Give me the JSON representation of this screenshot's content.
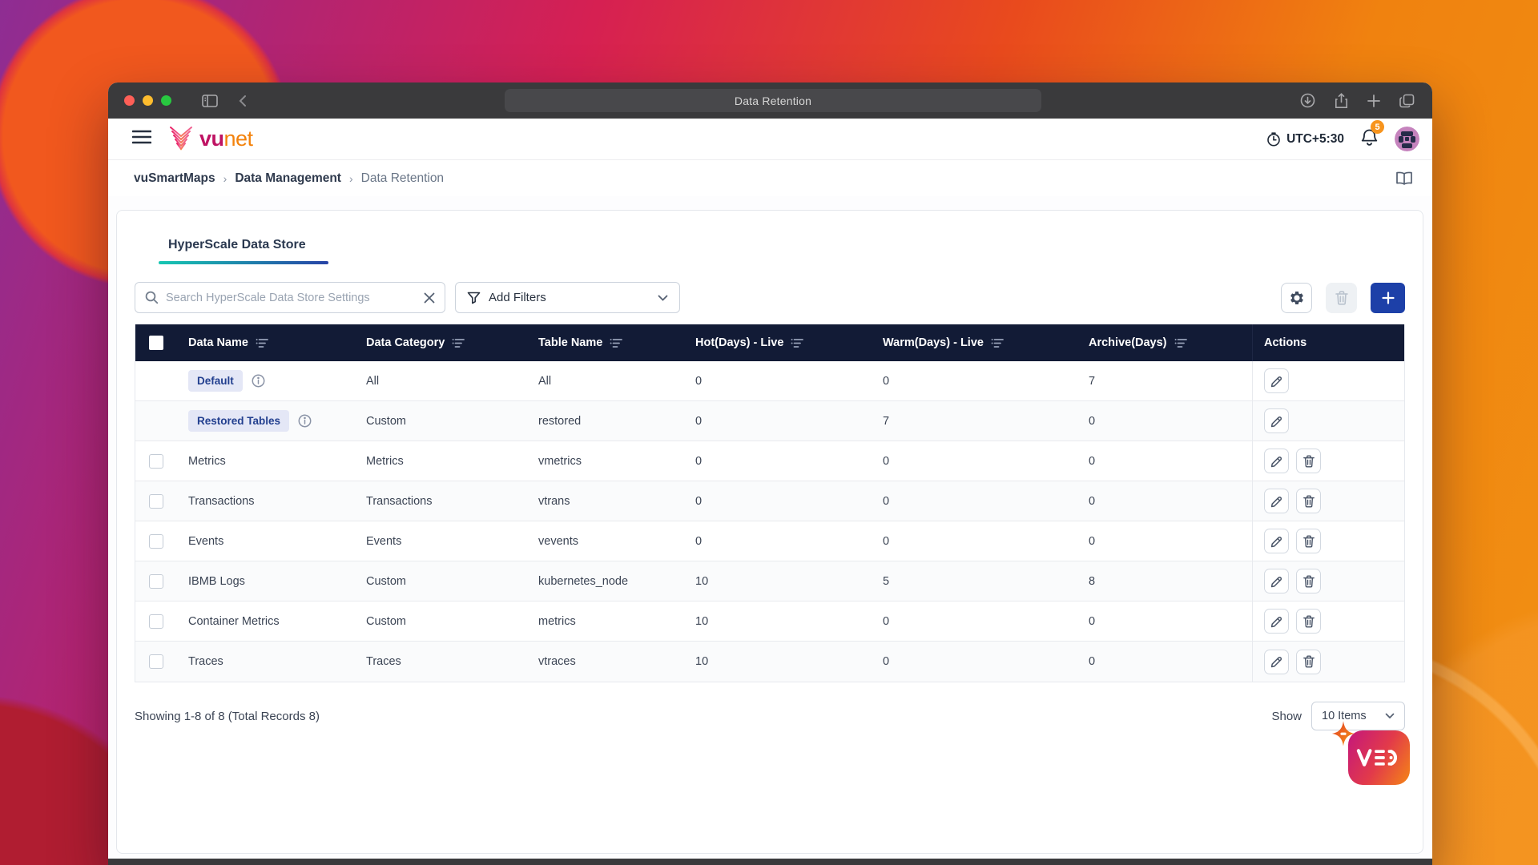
{
  "browser": {
    "title": "Data Retention",
    "traffic_lights": [
      "close",
      "minimize",
      "zoom"
    ],
    "left_icons": [
      "sidebar-icon",
      "back-chevron-icon"
    ],
    "right_icons": [
      "downloads-icon",
      "share-icon",
      "new-tab-icon",
      "tab-overview-icon"
    ]
  },
  "header": {
    "logo_vu": "vu",
    "logo_net": "net",
    "timezone": "UTC+5:30",
    "notification_count": "5"
  },
  "breadcrumb": {
    "items": [
      "vuSmartMaps",
      "Data Management",
      "Data Retention"
    ],
    "separator": "›"
  },
  "tabs": {
    "active_label": "HyperScale Data Store"
  },
  "toolbar": {
    "search_placeholder": "Search HyperScale Data Store Settings",
    "add_filters_label": "Add Filters"
  },
  "table": {
    "columns": [
      {
        "label": "",
        "type": "checkbox"
      },
      {
        "label": "Data Name",
        "filter": true
      },
      {
        "label": "Data Category",
        "filter": true
      },
      {
        "label": "Table Name",
        "filter": true
      },
      {
        "label": "Hot(Days) - Live",
        "filter": true
      },
      {
        "label": "Warm(Days) - Live",
        "filter": true
      },
      {
        "label": "Archive(Days)",
        "filter": true
      },
      {
        "label": "Actions",
        "filter": false,
        "type": "actions"
      }
    ],
    "rows": [
      {
        "data_name": "Default",
        "badge": true,
        "info": true,
        "selectable": false,
        "category": "All",
        "table_name": "All",
        "hot": "0",
        "warm": "0",
        "archive": "7",
        "actions": [
          "edit"
        ]
      },
      {
        "data_name": "Restored Tables",
        "badge": true,
        "info": true,
        "selectable": false,
        "category": "Custom",
        "table_name": "restored",
        "hot": "0",
        "warm": "7",
        "archive": "0",
        "actions": [
          "edit"
        ]
      },
      {
        "data_name": "Metrics",
        "badge": false,
        "info": false,
        "selectable": true,
        "category": "Metrics",
        "table_name": "vmetrics",
        "hot": "0",
        "warm": "0",
        "archive": "0",
        "actions": [
          "edit",
          "delete"
        ]
      },
      {
        "data_name": "Transactions",
        "badge": false,
        "info": false,
        "selectable": true,
        "category": "Transactions",
        "table_name": "vtrans",
        "hot": "0",
        "warm": "0",
        "archive": "0",
        "actions": [
          "edit",
          "delete"
        ]
      },
      {
        "data_name": "Events",
        "badge": false,
        "info": false,
        "selectable": true,
        "category": "Events",
        "table_name": "vevents",
        "hot": "0",
        "warm": "0",
        "archive": "0",
        "actions": [
          "edit",
          "delete"
        ]
      },
      {
        "data_name": "IBMB Logs",
        "badge": false,
        "info": false,
        "selectable": true,
        "category": "Custom",
        "table_name": "kubernetes_node",
        "hot": "10",
        "warm": "5",
        "archive": "8",
        "actions": [
          "edit",
          "delete"
        ]
      },
      {
        "data_name": "Container Metrics",
        "badge": false,
        "info": false,
        "selectable": true,
        "category": "Custom",
        "table_name": "metrics",
        "hot": "10",
        "warm": "0",
        "archive": "0",
        "actions": [
          "edit",
          "delete"
        ]
      },
      {
        "data_name": "Traces",
        "badge": false,
        "info": false,
        "selectable": true,
        "category": "Traces",
        "table_name": "vtraces",
        "hot": "10",
        "warm": "0",
        "archive": "0",
        "actions": [
          "edit",
          "delete"
        ]
      }
    ]
  },
  "footer": {
    "summary": "Showing 1-8 of 8 (Total Records 8)",
    "show_label": "Show",
    "page_size_value": "10 Items"
  },
  "watermark": {
    "logo_text": "VED"
  },
  "colors": {
    "header_navy": "#121b36",
    "accent_blue": "#1d40a8",
    "badge_bg": "#e4e7f6",
    "badge_text": "#223f8f",
    "tab_gradient_start": "#16c7b2",
    "tab_gradient_end": "#2743a6",
    "notification_badge": "#f7941d",
    "logo_vu_color": "#bf1363",
    "logo_net_color": "#f3820c"
  }
}
